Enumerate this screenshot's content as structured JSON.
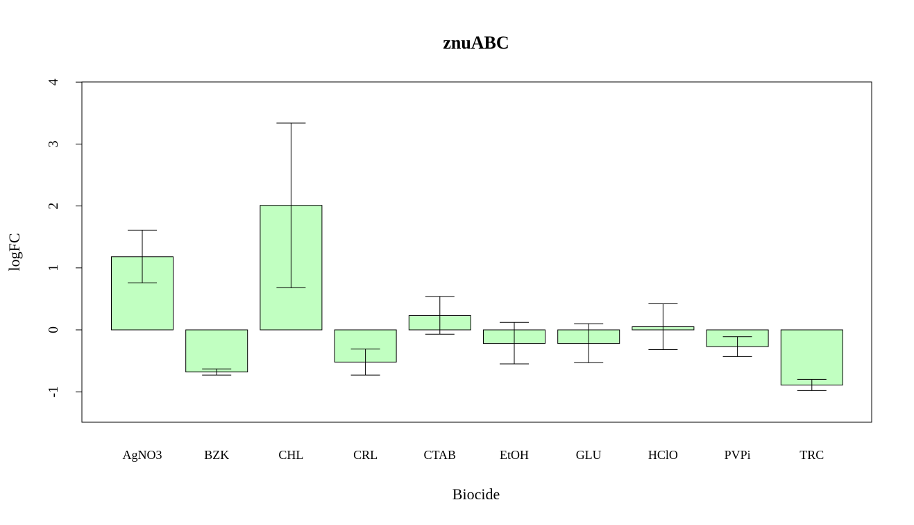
{
  "chart_data": {
    "type": "bar",
    "title": "znuABC",
    "xlabel": "Biocide",
    "ylabel": "logFC",
    "categories": [
      "AgNO3",
      "BZK",
      "CHL",
      "CRL",
      "CTAB",
      "EtOH",
      "GLU",
      "HClO",
      "PVPi",
      "TRC"
    ],
    "values": [
      1.18,
      -0.68,
      2.01,
      -0.52,
      0.23,
      -0.22,
      -0.22,
      0.05,
      -0.27,
      -0.89
    ],
    "error_low": [
      0.76,
      -0.73,
      0.68,
      -0.73,
      -0.07,
      -0.55,
      -0.53,
      -0.32,
      -0.43,
      -0.98
    ],
    "error_high": [
      1.61,
      -0.63,
      3.34,
      -0.31,
      0.54,
      0.12,
      0.1,
      0.42,
      -0.11,
      -0.8
    ],
    "yticks": [
      -1,
      0,
      1,
      2,
      3,
      4
    ],
    "ylim": [
      -1.5,
      4
    ],
    "bar_color": "#c1ffc1",
    "grid": false,
    "legend": "none"
  }
}
